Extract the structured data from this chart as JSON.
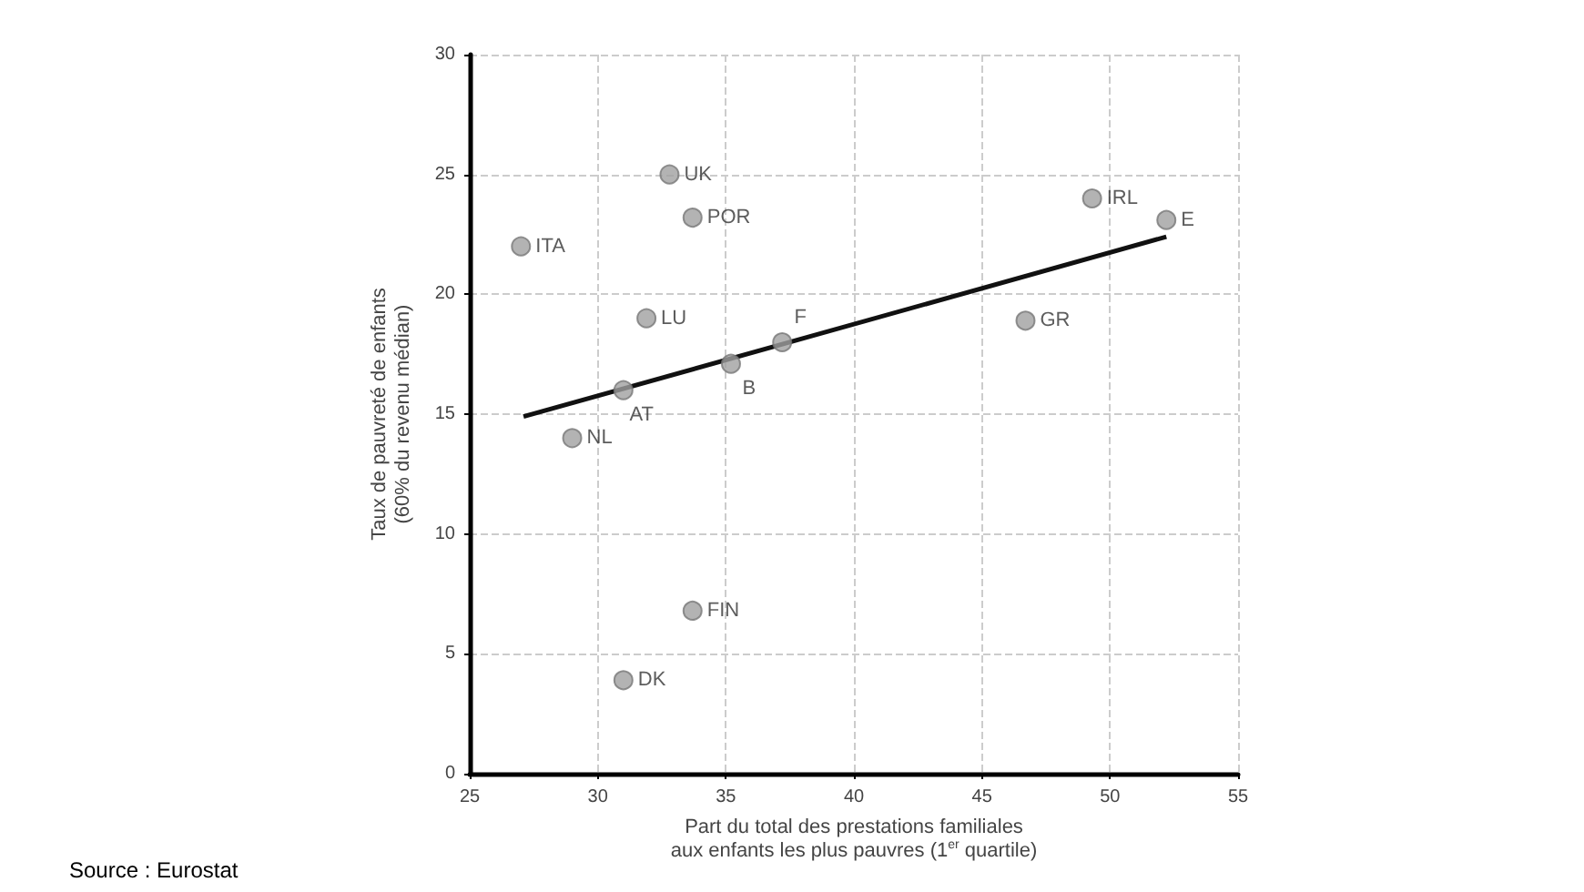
{
  "chart_data": {
    "type": "scatter",
    "xlabel": "Part du total des prestations familiales\naux enfants les plus pauvres (1$^{er}$ quartile)",
    "ylabel": "Taux de pauvreté de enfants\n(60% du revenu médian)",
    "series": [
      {
        "color": "#a0a0a0",
        "marker": "circle",
        "x": [
          27,
          32.8,
          33.7,
          31.9,
          31,
          35.2,
          37.2,
          29,
          33.7,
          31,
          49.3,
          52.2,
          46.7
        ],
        "values": [
          22,
          25,
          23.2,
          19,
          16,
          17.1,
          18,
          14,
          6.8,
          3.9,
          24,
          23.1,
          18.9
        ]
      },
      {
        "type": "line",
        "color": "#111111",
        "marker": "none",
        "x": [
          27.1,
          52.2
        ],
        "values": [
          14.9,
          22.4
        ]
      }
    ],
    "annotations": [
      {
        "text": "ITA",
        "x": 27,
        "y": 22
      },
      {
        "text": "UK",
        "x": 32.8,
        "y": 25
      },
      {
        "text": "POR",
        "x": 33.7,
        "y": 23.2
      },
      {
        "text": "LU",
        "x": 31.9,
        "y": 19
      },
      {
        "text": "AT",
        "x": 31,
        "y": 16
      },
      {
        "text": "B",
        "x": 35.2,
        "y": 17.1
      },
      {
        "text": "F",
        "x": 37.2,
        "y": 18
      },
      {
        "text": "NL",
        "x": 29,
        "y": 14
      },
      {
        "text": "FIN",
        "x": 33.7,
        "y": 6.8
      },
      {
        "text": "DK",
        "x": 31,
        "y": 3.9
      },
      {
        "text": "IRL",
        "x": 49.3,
        "y": 24
      },
      {
        "text": "E",
        "x": 52.2,
        "y": 23.1
      },
      {
        "text": "GR",
        "x": 46.7,
        "y": 18.9
      },
      "Source : Eurostat"
    ],
    "xlim": [
      25,
      55
    ],
    "xticks": [
      25,
      30,
      35,
      40,
      45,
      50,
      55
    ],
    "ylim": [
      0,
      30
    ],
    "yticks": [
      0,
      5,
      10,
      15,
      20,
      25,
      30
    ],
    "grid": true
  }
}
